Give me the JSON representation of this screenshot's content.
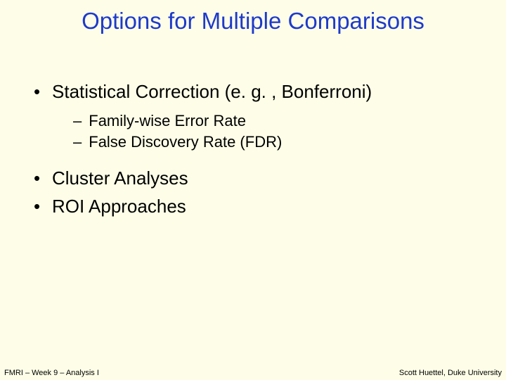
{
  "colors": {
    "background": "#fefee8",
    "title": "#1d3acb",
    "body_text": "#000000"
  },
  "typography": {
    "title_fontsize": 33,
    "bullet_fontsize": 26,
    "subbullet_fontsize": 22,
    "footer_fontsize": 11,
    "title_font_family": "Trebuchet MS",
    "body_font_family": "Trebuchet MS",
    "footer_font_family": "Arial"
  },
  "title": "Options for Multiple Comparisons",
  "bullets": [
    {
      "text": "Statistical Correction (e. g. , Bonferroni)",
      "sub": [
        "Family-wise Error Rate",
        "False Discovery Rate (FDR)"
      ]
    },
    {
      "text": "Cluster Analyses",
      "sub": []
    },
    {
      "text": "ROI Approaches",
      "sub": []
    }
  ],
  "footer": {
    "left": "FMRI – Week 9 – Analysis I",
    "right": "Scott Huettel, Duke University"
  }
}
